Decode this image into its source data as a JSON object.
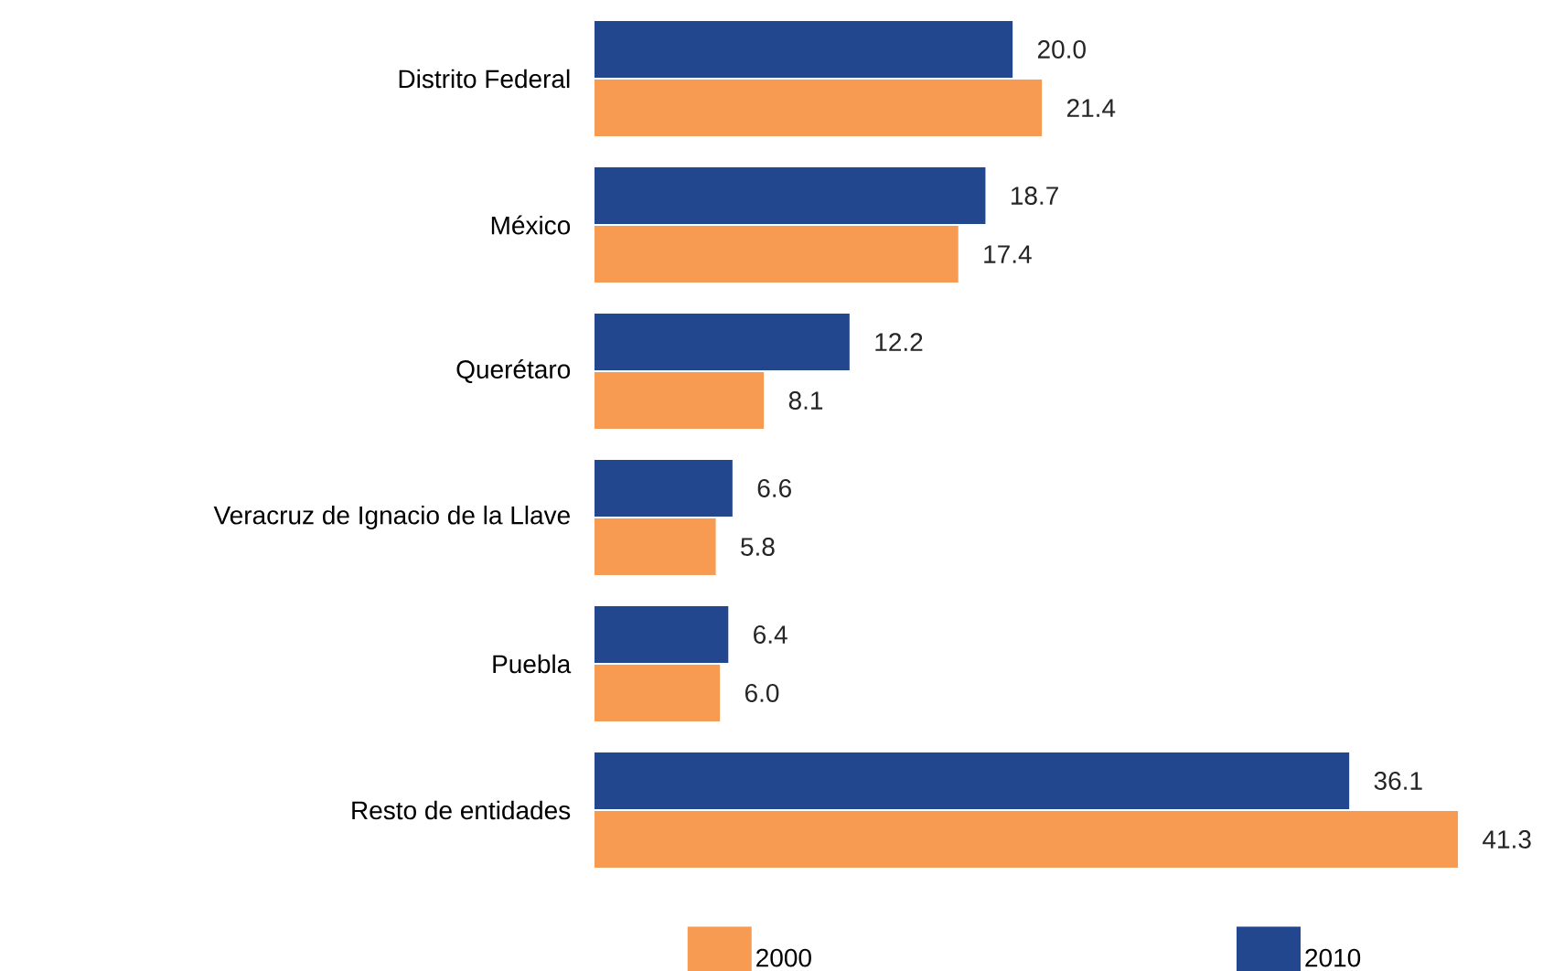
{
  "chart_data": {
    "type": "bar",
    "orientation": "horizontal",
    "categories": [
      "Distrito Federal",
      "México",
      "Querétaro",
      "Veracruz de Ignacio de la Llave",
      "Puebla",
      "Resto de entidades"
    ],
    "series": [
      {
        "name": "2000",
        "color": "#f79a52",
        "values": [
          21.4,
          17.4,
          8.1,
          5.8,
          6.0,
          41.3
        ],
        "value_labels": [
          "21.4",
          "17.4",
          "8.1",
          "5.8",
          "6.0",
          "41.3"
        ]
      },
      {
        "name": "2010",
        "color": "#23478f",
        "values": [
          20.0,
          18.7,
          12.2,
          6.6,
          6.4,
          36.1
        ],
        "value_labels": [
          "20.0",
          "18.7",
          "12.2",
          "6.6",
          "6.4",
          "36.1"
        ]
      }
    ],
    "xlim": [
      0,
      41.3
    ],
    "legend": "bottom",
    "tick_labels": "y"
  }
}
